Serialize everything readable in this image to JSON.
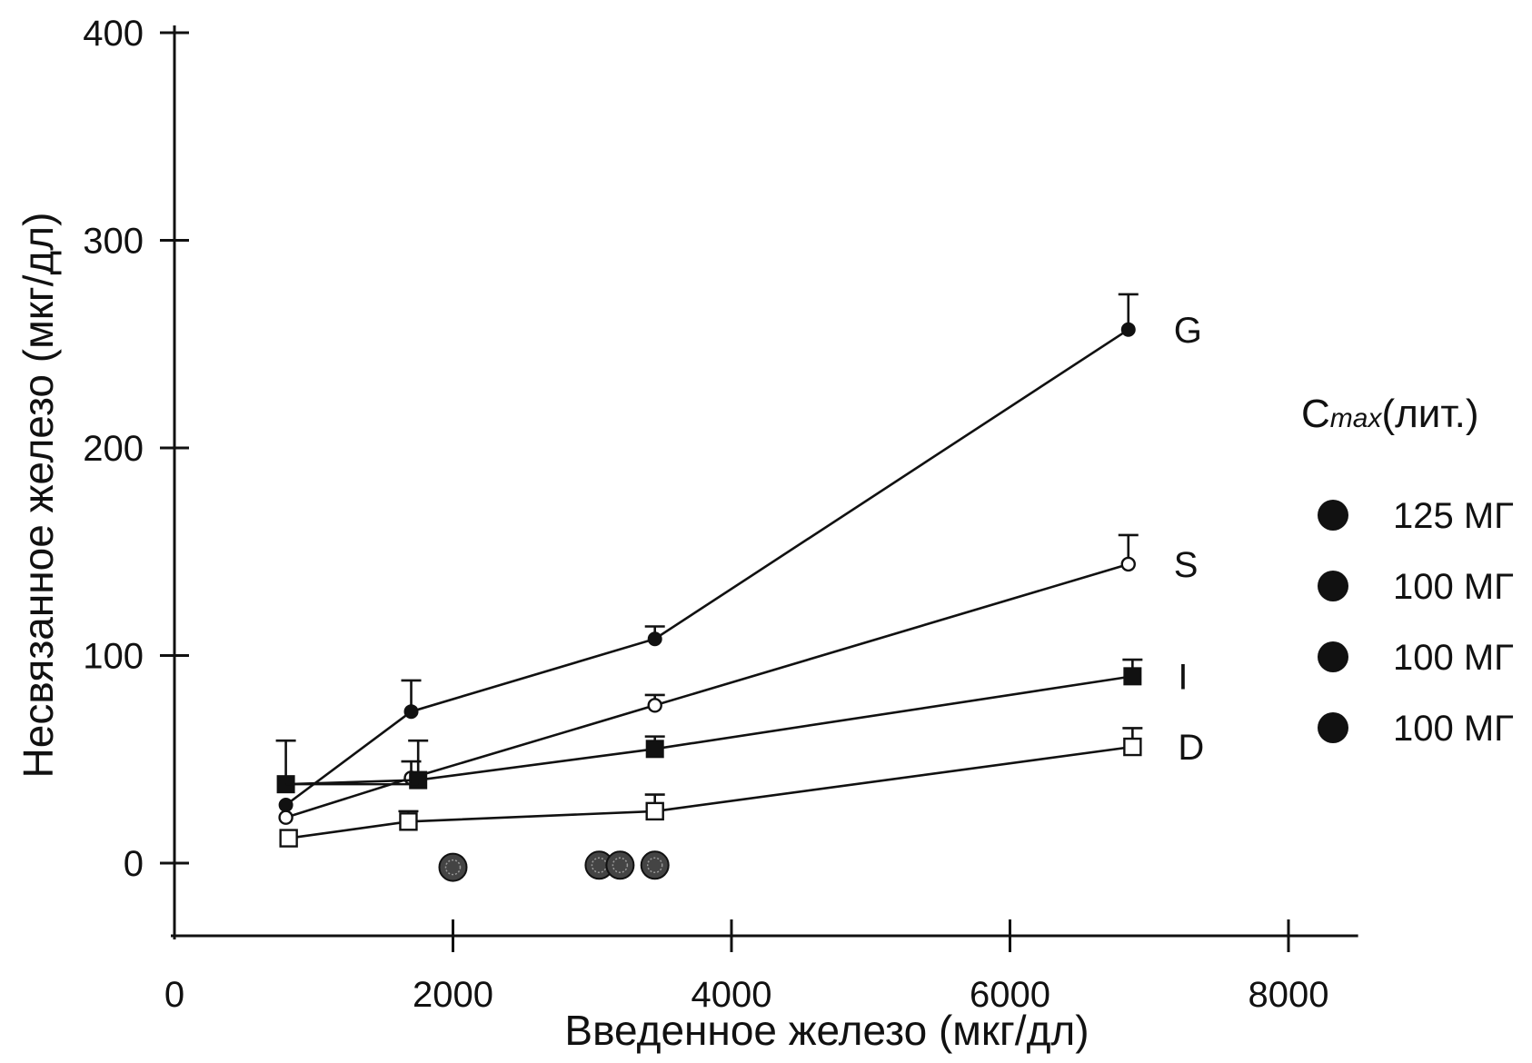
{
  "chart_data": {
    "type": "line",
    "title": "",
    "xlabel": "Введенное железо (мкг/дл)",
    "ylabel": "Несвязанное железо (мкг/дл)",
    "xlim": [
      0,
      8500
    ],
    "ylim": [
      -35,
      400
    ],
    "x_ticks": [
      0,
      2000,
      4000,
      6000,
      8000
    ],
    "y_ticks": [
      0,
      100,
      200,
      300,
      400
    ],
    "grid": false,
    "series": [
      {
        "name": "G",
        "marker": "filled-circle",
        "points": [
          {
            "x": 800,
            "y": 28,
            "err": 0
          },
          {
            "x": 1700,
            "y": 73,
            "err": 15
          },
          {
            "x": 3450,
            "y": 108,
            "err": 6
          },
          {
            "x": 6850,
            "y": 257,
            "err": 17
          }
        ]
      },
      {
        "name": "S",
        "marker": "open-circle",
        "points": [
          {
            "x": 800,
            "y": 22,
            "err": 0
          },
          {
            "x": 1700,
            "y": 41,
            "err": 8
          },
          {
            "x": 3450,
            "y": 76,
            "err": 5
          },
          {
            "x": 6850,
            "y": 144,
            "err": 14
          }
        ]
      },
      {
        "name": "I",
        "marker": "filled-square",
        "points": [
          {
            "x": 800,
            "y": 38,
            "err": 21
          },
          {
            "x": 1750,
            "y": 40,
            "err": 19
          },
          {
            "x": 3450,
            "y": 55,
            "err": 6
          },
          {
            "x": 6880,
            "y": 90,
            "err": 8
          }
        ]
      },
      {
        "name": "D",
        "marker": "open-square",
        "points": [
          {
            "x": 820,
            "y": 12,
            "err": 0
          },
          {
            "x": 1680,
            "y": 20,
            "err": 5
          },
          {
            "x": 3450,
            "y": 25,
            "err": 8
          },
          {
            "x": 6880,
            "y": 56,
            "err": 9
          }
        ]
      }
    ],
    "cmax_points": [
      {
        "x": 2000,
        "y": -2
      },
      {
        "x": 3050,
        "y": -1
      },
      {
        "x": 3200,
        "y": -1
      },
      {
        "x": 3450,
        "y": -1
      }
    ],
    "legend": {
      "title_main": "C",
      "title_sub": "max",
      "title_suffix": "(лит.)",
      "placement": "right",
      "entries": [
        {
          "label": "125 МГ"
        },
        {
          "label": "100 МГ"
        },
        {
          "label": "100 МГ"
        },
        {
          "label": "100 МГ"
        }
      ]
    }
  }
}
